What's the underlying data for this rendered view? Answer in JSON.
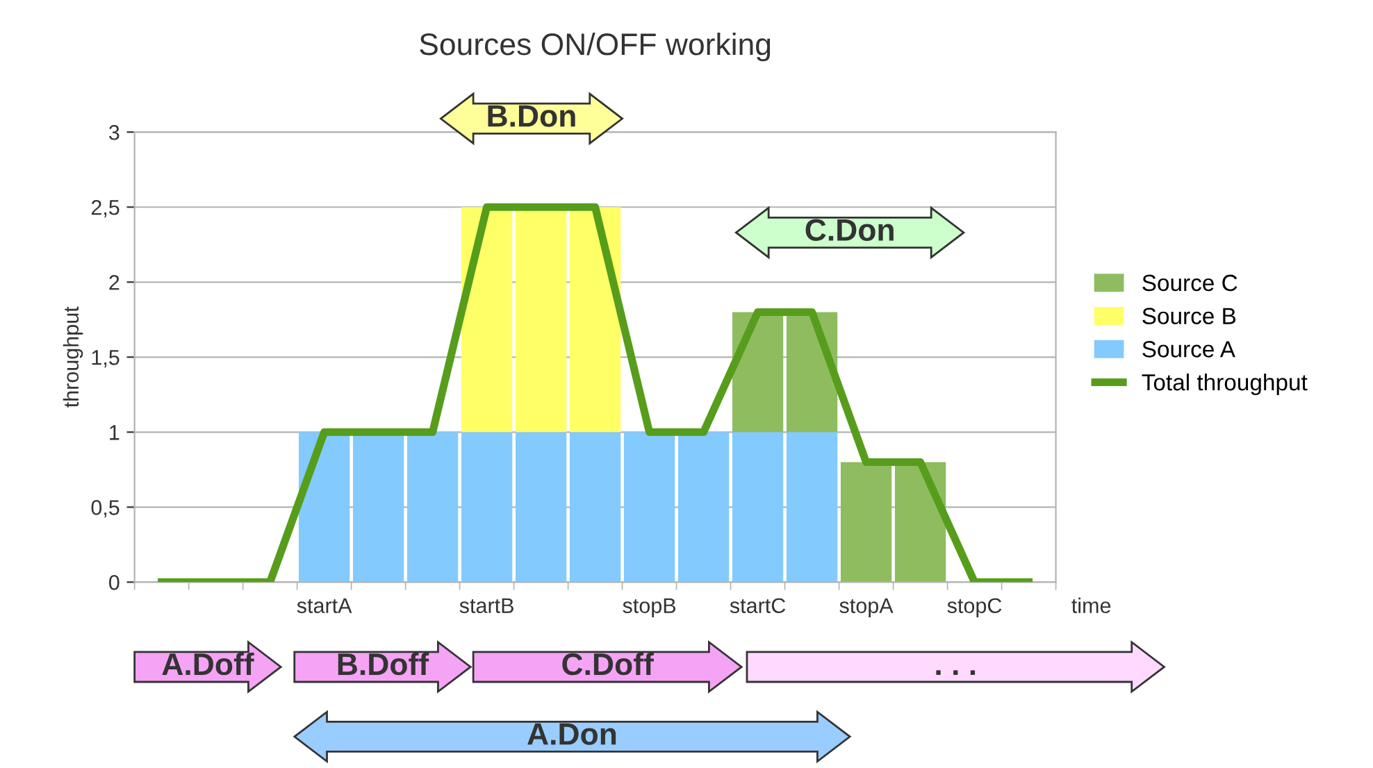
{
  "chart_data": {
    "type": "bar",
    "stacked": true,
    "title": "Sources ON/OFF working",
    "ylabel": "throughput",
    "xlabel": "time",
    "categories": [
      null,
      null,
      null,
      "startA",
      null,
      null,
      "startB",
      null,
      null,
      "stopB",
      null,
      "startC",
      null,
      "stopA",
      null,
      "stopC",
      null
    ],
    "series": [
      {
        "name": "Source A",
        "color": "#83caff",
        "values": [
          0,
          0,
          0,
          1,
          1,
          1,
          1,
          1,
          1,
          1,
          1,
          1,
          1,
          0,
          0,
          0,
          0
        ]
      },
      {
        "name": "Source B",
        "color": "#ffff66",
        "values": [
          0,
          0,
          0,
          0,
          0,
          0,
          1.5,
          1.5,
          1.5,
          0,
          0,
          0,
          0,
          0,
          0,
          0,
          0
        ]
      },
      {
        "name": "Source C",
        "color": "#8fbc5f",
        "values": [
          0,
          0,
          0,
          0,
          0,
          0,
          0,
          0,
          0,
          0,
          0,
          0.8,
          0.8,
          0.8,
          0.8,
          0,
          0
        ]
      },
      {
        "name": "Total throughput",
        "type": "line",
        "color": "#579d1c",
        "values": [
          0,
          0,
          0,
          1,
          1,
          1,
          2.5,
          2.5,
          2.5,
          1,
          1,
          1.8,
          1.8,
          0.8,
          0.8,
          0,
          0
        ]
      }
    ],
    "ylim": [
      0,
      3
    ],
    "yticks": [
      0,
      {
        "value": 0.5,
        "label": "0,5"
      },
      1,
      {
        "value": 1.5,
        "label": "1,5"
      },
      2,
      {
        "value": 2.5,
        "label": "2,5"
      },
      3
    ],
    "grid": "y",
    "legend": "right",
    "annotations": [
      "B.Don",
      "C.Don",
      "A.Doff",
      "B.Doff",
      "C.Doff",
      ". . .",
      "A.Don"
    ]
  }
}
